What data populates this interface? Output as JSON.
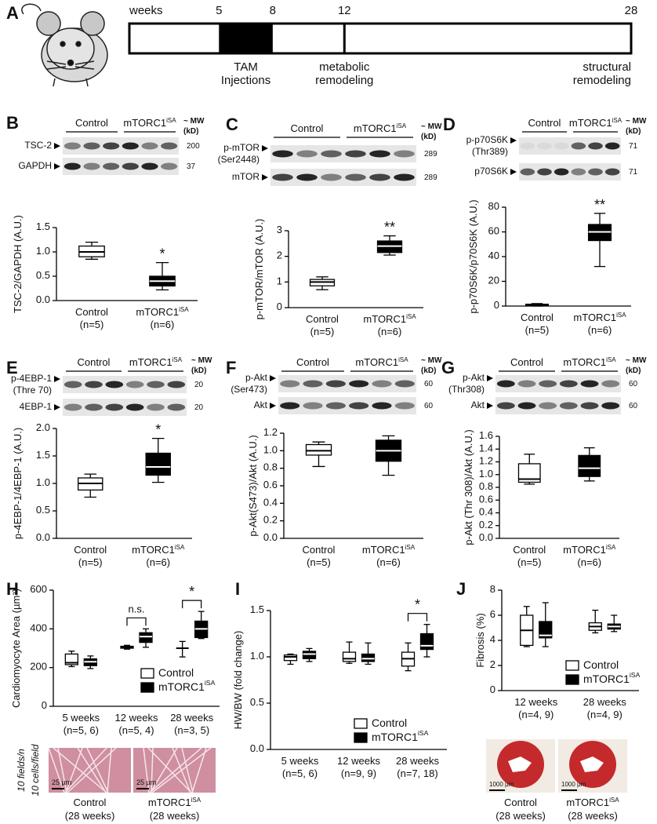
{
  "timeline": {
    "letter": "A",
    "label": "weeks",
    "xlim": [
      0,
      28
    ],
    "ticks": [
      5,
      8,
      12,
      28
    ],
    "notes": [
      [
        "TAM",
        "Injections"
      ],
      [
        "metabolic",
        "remodeling"
      ],
      [
        "structural",
        "remodeling"
      ]
    ]
  },
  "chart_data": [
    {
      "type": "box",
      "letter": "B",
      "ylabel": "TSC-2/GAPDH (A.U.)",
      "ylim": [
        0,
        1.5
      ],
      "yticks": [
        {
          "value": 0,
          "label": "0.0"
        },
        0.5,
        {
          "value": 1,
          "label": "1.0"
        },
        1.5
      ],
      "blot": {
        "groups": [
          {
            "label": "Control"
          },
          {
            "label": "mTORC1",
            "sup": "iSA"
          }
        ],
        "mw": [
          "~ MW",
          "(kD)"
        ],
        "rows": [
          {
            "label": "TSC-2",
            "mw": "200"
          },
          {
            "label": "GAPDH",
            "mw": "37"
          }
        ]
      },
      "boxes": [
        {
          "label": "Control",
          "n": "(n=5)",
          "color": "#ffffff",
          "stats": [
            0.85,
            0.9,
            1.0,
            1.12,
            1.2
          ]
        },
        {
          "label": "mTORC1",
          "sup": "iSA",
          "n": "(n=6)",
          "color": "#000000",
          "stats": [
            0.22,
            0.3,
            0.4,
            0.5,
            0.78
          ],
          "mark": "*"
        }
      ]
    },
    {
      "type": "box",
      "letter": "C",
      "ylabel": "p-mTOR/mTOR (A.U.)",
      "ylim": [
        0,
        3
      ],
      "yticks": [
        0,
        1,
        2,
        3
      ],
      "blot": {
        "groups": [
          {
            "label": "Control"
          },
          {
            "label": "mTORC1",
            "sup": "iSA"
          }
        ],
        "mw": [
          "~ MW",
          "(kD)"
        ],
        "rows": [
          {
            "label": "p-mTOR",
            "sub": "(Ser2448)",
            "mw": "289"
          },
          {
            "label": "mTOR",
            "mw": "289"
          }
        ]
      },
      "boxes": [
        {
          "label": "Control",
          "n": "(n=5)",
          "color": "#ffffff",
          "stats": [
            0.7,
            0.85,
            1.0,
            1.1,
            1.2
          ]
        },
        {
          "label": "mTORC1",
          "sup": "iSA",
          "n": "(n=6)",
          "color": "#000000",
          "stats": [
            2.05,
            2.15,
            2.4,
            2.6,
            2.8
          ],
          "mark": "**"
        }
      ]
    },
    {
      "type": "box",
      "letter": "D",
      "ylabel": "p-p70S6K/p70S6K (A.U.)",
      "ylim": [
        0,
        80
      ],
      "yticks": [
        0,
        20,
        40,
        60,
        80
      ],
      "blot": {
        "groups": [
          {
            "label": "Control"
          },
          {
            "label": "mTORC1",
            "sup": "iSA"
          }
        ],
        "mw": [
          "~ MW",
          "(kD)"
        ],
        "rows": [
          {
            "label": "p-p70S6K",
            "sub": "(Thr389)",
            "mw": "71"
          },
          {
            "label": "p70S6K",
            "mw": "71"
          }
        ]
      },
      "boxes": [
        {
          "label": "Control",
          "n": "(n=5)",
          "color": "#ffffff",
          "stats": [
            0,
            0.5,
            1,
            1.5,
            2
          ]
        },
        {
          "label": "mTORC1",
          "sup": "iSA",
          "n": "(n=6)",
          "color": "#000000",
          "stats": [
            32,
            53,
            60,
            66,
            75
          ],
          "mark": "**"
        }
      ]
    },
    {
      "type": "box",
      "letter": "E",
      "ylabel": "p-4EBP-1/4EBP-1 (A.U.)",
      "ylim": [
        0,
        2
      ],
      "yticks": [
        {
          "value": 0,
          "label": "0.0"
        },
        0.5,
        {
          "value": 1,
          "label": "1.0"
        },
        1.5,
        {
          "value": 2,
          "label": "2.0"
        }
      ],
      "blot": {
        "groups": [
          {
            "label": "Control"
          },
          {
            "label": "mTORC1",
            "sup": "iSA"
          }
        ],
        "mw": [
          "~ MW",
          "(kD)"
        ],
        "rows": [
          {
            "label": "p-4EBP-1",
            "sub": "(Thre 70)",
            "mw": "20"
          },
          {
            "label": "4EBP-1",
            "mw": "20"
          }
        ]
      },
      "boxes": [
        {
          "label": "Control",
          "n": "(n=5)",
          "color": "#ffffff",
          "stats": [
            0.75,
            0.88,
            1.0,
            1.1,
            1.17
          ]
        },
        {
          "label": "mTORC1",
          "sup": "iSA",
          "n": "(n=6)",
          "color": "#000000",
          "stats": [
            1.02,
            1.15,
            1.3,
            1.55,
            1.82
          ],
          "mark": "*"
        }
      ]
    },
    {
      "type": "box",
      "letter": "F",
      "ylabel": "p-Akt(S473)/Akt (A.U.)",
      "ylim": [
        0,
        1.2
      ],
      "yticks": [
        {
          "value": 0,
          "label": "0.0"
        },
        0.2,
        0.4,
        0.6,
        0.8,
        {
          "value": 1,
          "label": "1.0"
        },
        1.2
      ],
      "blot": {
        "groups": [
          {
            "label": "Control"
          },
          {
            "label": "mTORC1",
            "sup": "iSA"
          }
        ],
        "mw": [
          "~ MW",
          "(kD)"
        ],
        "rows": [
          {
            "label": "p-Akt",
            "sub": "(Ser473)",
            "mw": "60"
          },
          {
            "label": "Akt",
            "mw": "60"
          }
        ]
      },
      "boxes": [
        {
          "label": "Control",
          "n": "(n=5)",
          "color": "#ffffff",
          "stats": [
            0.82,
            0.95,
            1.0,
            1.07,
            1.1
          ]
        },
        {
          "label": "mTORC1",
          "sup": "iSA",
          "n": "(n=6)",
          "color": "#000000",
          "stats": [
            0.72,
            0.88,
            1.0,
            1.12,
            1.17
          ]
        }
      ]
    },
    {
      "type": "box",
      "letter": "G",
      "ylabel": "p-Akt (Thr 308)/Akt (A.U.)",
      "ylim": [
        0,
        1.6
      ],
      "yticks": [
        {
          "value": 0,
          "label": "0.0"
        },
        0.2,
        0.4,
        0.6,
        0.8,
        {
          "value": 1,
          "label": "1.0"
        },
        1.2,
        1.4,
        1.6
      ],
      "blot": {
        "groups": [
          {
            "label": "Control"
          },
          {
            "label": "mTORC1",
            "sup": "iSA"
          }
        ],
        "mw": [
          "~ MW",
          "(kD)"
        ],
        "rows": [
          {
            "label": "p-Akt",
            "sub": "(Thr308)",
            "mw": "60"
          },
          {
            "label": "Akt",
            "mw": "60"
          }
        ]
      },
      "boxes": [
        {
          "label": "Control",
          "n": "(n=5)",
          "color": "#ffffff",
          "stats": [
            0.85,
            0.88,
            0.93,
            1.17,
            1.32
          ]
        },
        {
          "label": "mTORC1",
          "sup": "iSA",
          "n": "(n=6)",
          "color": "#000000",
          "stats": [
            0.9,
            0.97,
            1.1,
            1.3,
            1.42
          ]
        }
      ]
    },
    {
      "type": "grouped_box",
      "letter": "H",
      "ylabel": "Cardiomyocyte Area (µm²)",
      "ylim": [
        0,
        600
      ],
      "yticks": [
        0,
        200,
        400,
        600
      ],
      "categories": [
        {
          "label": "5 weeks",
          "n": "(n=5, 6)"
        },
        {
          "label": "12 weeks",
          "n": "(n=5, 4)"
        },
        {
          "label": "28 weeks",
          "n": "(n=3, 5)"
        }
      ],
      "series": [
        {
          "name": "Control",
          "color": "#ffffff",
          "values": [
            [
              205,
              215,
              225,
              270,
              285
            ],
            [
              295,
              300,
              305,
              310,
              315
            ],
            [
              255,
              300,
              300,
              300,
              335
            ]
          ]
        },
        {
          "name": "mTORC1",
          "sup": "iSA",
          "color": "#000000",
          "values": [
            [
              195,
              210,
              230,
              245,
              260
            ],
            [
              305,
              330,
              360,
              380,
              400
            ],
            [
              350,
              355,
              400,
              440,
              490
            ]
          ]
        }
      ],
      "annotations": [
        {
          "text": "n.s.",
          "category": 1
        },
        {
          "text": "*",
          "category": 2
        }
      ],
      "images": {
        "side_text": [
          "10 fields/n",
          "10 cells/field"
        ],
        "scale": "25 µm",
        "captions": [
          {
            "label": "Control",
            "sub": "(28 weeks)"
          },
          {
            "label": "mTORC1",
            "sup": "iSA",
            "sub": "(28 weeks)"
          }
        ]
      }
    },
    {
      "type": "grouped_box",
      "letter": "I",
      "ylabel": "HW/BW (fold change)",
      "ylim": [
        0,
        1.5
      ],
      "yticks": [
        {
          "value": 0,
          "label": "0.0"
        },
        0.5,
        {
          "value": 1,
          "label": "1.0"
        },
        1.5
      ],
      "categories": [
        {
          "label": "5 weeks",
          "n": "(n=5, 6)"
        },
        {
          "label": "12 weeks",
          "n": "(n=9, 9)"
        },
        {
          "label": "28 weeks",
          "n": "(n=7, 18)"
        }
      ],
      "series": [
        {
          "name": "Control",
          "color": "#ffffff",
          "values": [
            [
              0.92,
              0.96,
              1.0,
              1.02,
              1.03
            ],
            [
              0.93,
              0.95,
              0.98,
              1.05,
              1.16
            ],
            [
              0.85,
              0.9,
              0.98,
              1.05,
              1.15
            ]
          ]
        },
        {
          "name": "mTORC1",
          "sup": "iSA",
          "color": "#000000",
          "values": [
            [
              0.95,
              0.98,
              1.03,
              1.06,
              1.09
            ],
            [
              0.92,
              0.95,
              0.98,
              1.03,
              1.15
            ],
            [
              1.0,
              1.08,
              1.12,
              1.25,
              1.35
            ]
          ]
        }
      ],
      "annotations": [
        {
          "text": "*",
          "category": 2
        }
      ]
    },
    {
      "type": "grouped_box",
      "letter": "J",
      "ylabel": "Fibrosis (%)",
      "ylim": [
        0,
        8
      ],
      "yticks": [
        0,
        2,
        4,
        6,
        8
      ],
      "categories": [
        {
          "label": "12 weeks",
          "n": "(n=4, 9)"
        },
        {
          "label": "28 weeks",
          "n": "(n=4, 9)"
        }
      ],
      "series": [
        {
          "name": "Control",
          "color": "#ffffff",
          "values": [
            [
              3.5,
              3.6,
              4.8,
              6.0,
              6.7
            ],
            [
              4.6,
              4.8,
              5.1,
              5.4,
              6.4
            ]
          ]
        },
        {
          "name": "mTORC1",
          "sup": "iSA",
          "color": "#000000",
          "values": [
            [
              3.5,
              4.2,
              4.4,
              5.5,
              7.0
            ],
            [
              4.7,
              4.9,
              5.1,
              5.3,
              6.0
            ]
          ]
        }
      ],
      "annotations": [],
      "images": {
        "scale": "1000 µm",
        "captions": [
          {
            "label": "Control",
            "sub": "(28 weeks)"
          },
          {
            "label": "mTORC1",
            "sup": "iSA",
            "sub": "(28 weeks)"
          }
        ]
      }
    }
  ]
}
